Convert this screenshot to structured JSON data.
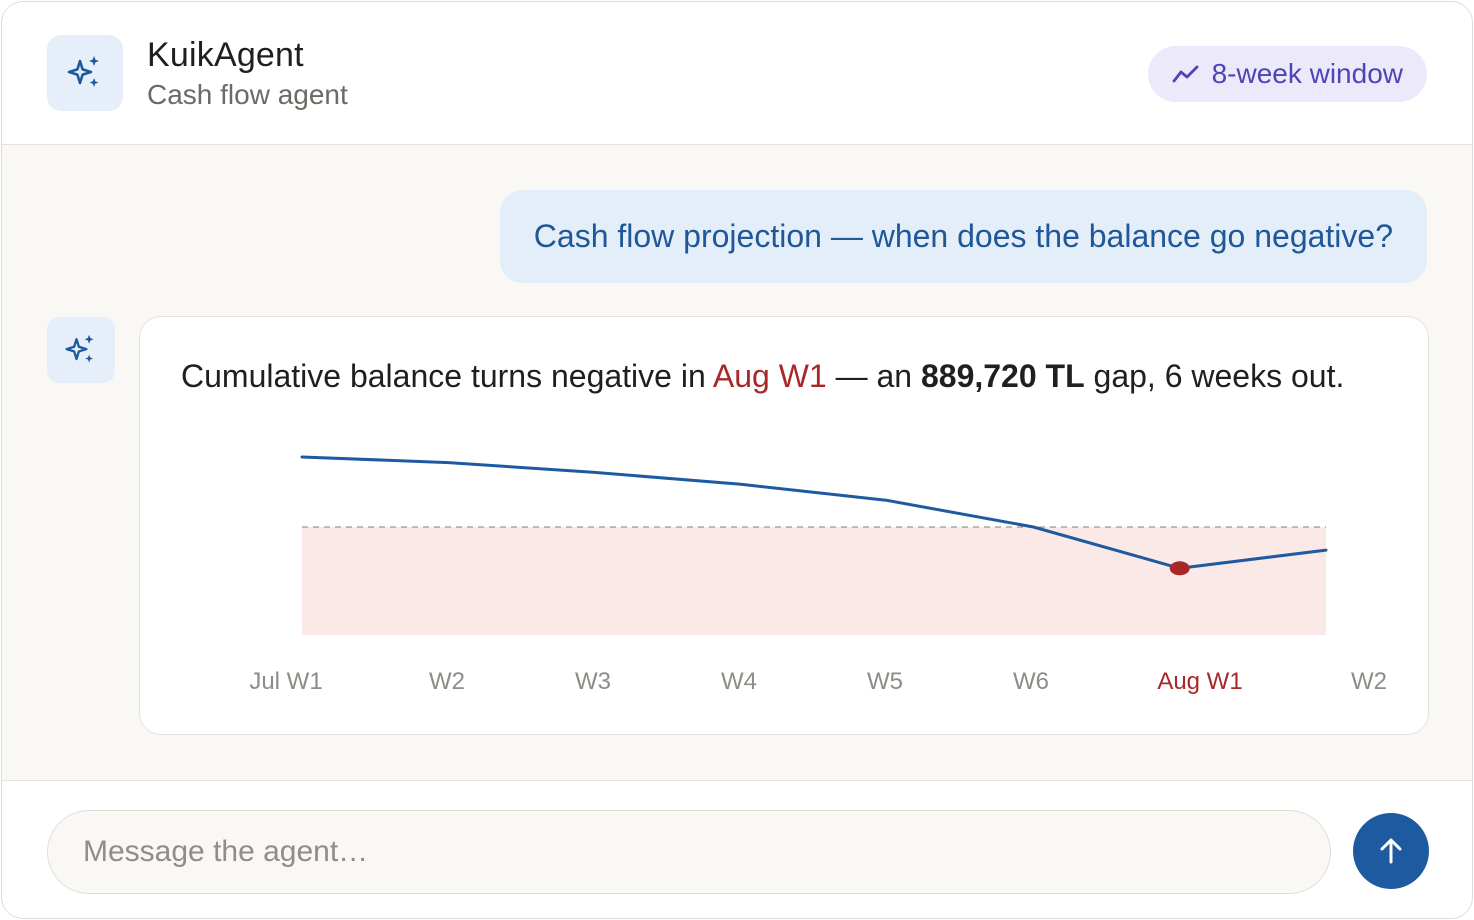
{
  "header": {
    "title": "KuikAgent",
    "subtitle": "Cash flow agent",
    "window_pill": "8-week window",
    "avatar_icon": "sparkles-icon",
    "pill_icon": "trend-line-icon"
  },
  "conversation": {
    "user_message": "Cash flow projection — when does the balance go negative?",
    "agent_message": {
      "part1": "Cumulative balance turns negative in ",
      "highlight_week": "Aug W1",
      "part2": " — an ",
      "gap_amount": "889,720 TL",
      "part3": " gap, 6 weeks out."
    }
  },
  "chart_data": {
    "type": "line",
    "categories": [
      "Jul W1",
      "W2",
      "W3",
      "W4",
      "W5",
      "W6",
      "Aug W1",
      "W2"
    ],
    "values": [
      100,
      92,
      78,
      61,
      38,
      0,
      -59,
      -33
    ],
    "zero_line": 0,
    "highlight_category": "Aug W1",
    "negative_region_shaded": true,
    "grid": false,
    "colors": {
      "line": "#1e5aa0",
      "negative_region": "#fbe9e8",
      "zero_line": "#9a9691",
      "marker": "#a8282a",
      "tick": "#8f8b86",
      "tick_highlight": "#a8282a"
    }
  },
  "composer": {
    "placeholder": "Message the agent…",
    "send_icon": "arrow-up-icon"
  },
  "colors": {
    "accent": "#1e5aa0",
    "alert": "#a8282a",
    "pill_bg": "#ece9fb",
    "pill_text": "#4f44b3",
    "chat_bg": "#faf8f4"
  }
}
